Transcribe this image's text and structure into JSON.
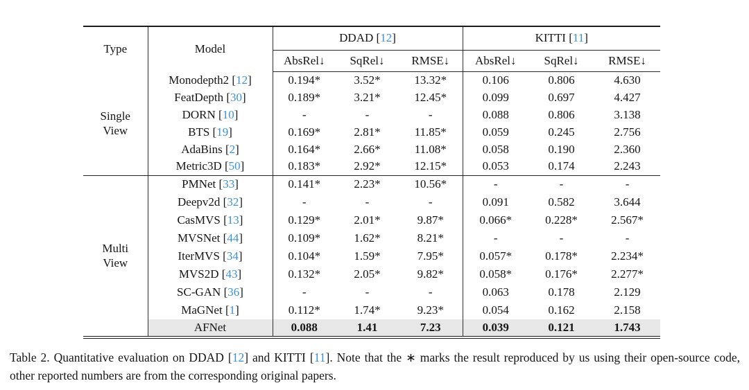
{
  "colors": {
    "citation_link": "#3c92d8",
    "highlight_row_bg": "#e7e7e7",
    "rule": "#1c1c1c",
    "text": "#151515"
  },
  "format": {
    "bracket_open": "[",
    "bracket_close": "]",
    "cite_sep": " "
  },
  "table": {
    "header": {
      "type_label": "Type",
      "model_label": "Model",
      "groups": [
        {
          "name": "DDAD",
          "cite": "12",
          "metrics": [
            "AbsRel↓",
            "SqRel↓",
            "RMSE↓"
          ]
        },
        {
          "name": "KITTI",
          "cite": "11",
          "metrics": [
            "AbsRel↓",
            "SqRel↓",
            "RMSE↓"
          ]
        }
      ]
    },
    "sections": [
      {
        "type_lines": [
          "Single",
          "View"
        ],
        "rows": [
          {
            "model": "Monodepth2",
            "cite": "12",
            "values": [
              "0.194*",
              "3.52*",
              "13.32*",
              "0.106",
              "0.806",
              "4.630"
            ]
          },
          {
            "model": "FeatDepth",
            "cite": "30",
            "values": [
              "0.189*",
              "3.21*",
              "12.45*",
              "0.099",
              "0.697",
              "4.427"
            ]
          },
          {
            "model": "DORN",
            "cite": "10",
            "values": [
              "-",
              "-",
              "-",
              "0.088",
              "0.806",
              "3.138"
            ]
          },
          {
            "model": "BTS",
            "cite": "19",
            "values": [
              "0.169*",
              "2.81*",
              "11.85*",
              "0.059",
              "0.245",
              "2.756"
            ]
          },
          {
            "model": "AdaBins",
            "cite": "2",
            "values": [
              "0.164*",
              "2.66*",
              "11.08*",
              "0.058",
              "0.190",
              "2.360"
            ]
          },
          {
            "model": "Metric3D",
            "cite": "50",
            "values": [
              "0.183*",
              "2.92*",
              "12.15*",
              "0.053",
              "0.174",
              "2.243"
            ]
          }
        ]
      },
      {
        "type_lines": [
          "Multi",
          "View"
        ],
        "rows": [
          {
            "model": "PMNet",
            "cite": "33",
            "values": [
              "0.141*",
              "2.23*",
              "10.56*",
              "-",
              "-",
              "-"
            ]
          },
          {
            "model": "Deepv2d",
            "cite": "32",
            "values": [
              "-",
              "-",
              "-",
              "0.091",
              "0.582",
              "3.644"
            ]
          },
          {
            "model": "CasMVS",
            "cite": "13",
            "values": [
              "0.129*",
              "2.01*",
              "9.87*",
              "0.066*",
              "0.228*",
              "2.567*"
            ]
          },
          {
            "model": "MVSNet",
            "cite": "44",
            "values": [
              "0.109*",
              "1.62*",
              "8.21*",
              "-",
              "-",
              "-"
            ]
          },
          {
            "model": "IterMVS",
            "cite": "34",
            "values": [
              "0.104*",
              "1.59*",
              "7.95*",
              "0.057*",
              "0.178*",
              "2.234*"
            ]
          },
          {
            "model": "MVS2D",
            "cite": "43",
            "values": [
              "0.132*",
              "2.05*",
              "9.82*",
              "0.058*",
              "0.176*",
              "2.277*"
            ]
          },
          {
            "model": "SC-GAN",
            "cite": "36",
            "values": [
              "-",
              "-",
              "-",
              "0.063",
              "0.178",
              "2.129"
            ]
          },
          {
            "model": "MaGNet",
            "cite": "1",
            "values": [
              "0.112*",
              "1.74*",
              "9.23*",
              "0.054",
              "0.162",
              "2.158"
            ]
          },
          {
            "model": "AFNet",
            "cite": "",
            "values": [
              "0.088",
              "1.41",
              "7.23",
              "0.039",
              "0.121",
              "1.743"
            ],
            "highlight": true
          }
        ]
      }
    ]
  },
  "caption": {
    "parts": [
      {
        "t": "Table 2. Quantitative evaluation on DDAD ["
      },
      {
        "t": "12",
        "cite": true
      },
      {
        "t": "] and KITTI ["
      },
      {
        "t": "11",
        "cite": true
      },
      {
        "t": "]. Note that the ∗ marks the result reproduced by us using their open-source code, other reported numbers are from the corresponding original papers."
      }
    ]
  }
}
